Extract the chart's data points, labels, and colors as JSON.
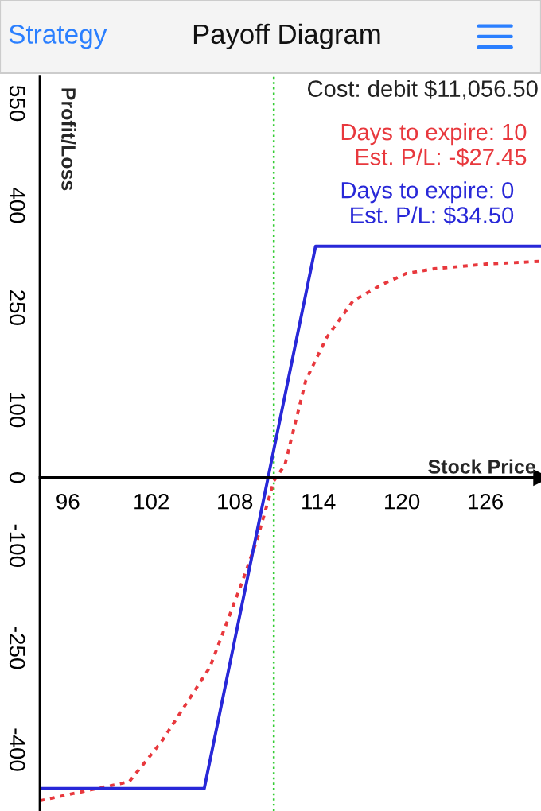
{
  "chart_data": {
    "type": "line",
    "title": "Payoff Diagram",
    "xlabel": "Stock Price",
    "ylabel": "Profit/Loss",
    "annotations": [
      "Cost: debit $11,056.50",
      "Strategy"
    ],
    "series": [
      {
        "name": "Days to expire: 10\nEst. P/L: -$27.45",
        "color": "#e8383d",
        "line_style": "dotted",
        "x": [
          94,
          96,
          100.4,
          102.7,
          106.2,
          108.5,
          109.6,
          110.8,
          111.6,
          113.1,
          114.6,
          116.5,
          118.5,
          120.3,
          122.3,
          126.1,
          130
        ],
        "values": [
          -475,
          -466,
          -447,
          -389,
          -279,
          -155,
          -91,
          -5,
          19,
          143,
          206,
          260,
          283,
          300,
          307,
          314,
          318
        ]
      },
      {
        "name": "Days to expire: 0\nEst. P/L: $34.50",
        "color": "#2828d8",
        "line_style": "solid",
        "x": [
          94,
          105.8,
          113.8,
          130
        ],
        "values": [
          -457,
          -457,
          340,
          340
        ]
      }
    ],
    "ref_lines": [
      {
        "axis": "x",
        "value": 110.8,
        "color": "#33cc33",
        "line_style": "dotted"
      }
    ],
    "xlim": [
      94,
      130
    ],
    "ylim": [
      -490,
      590
    ],
    "xticks": [
      96,
      102,
      108,
      114,
      120,
      126
    ],
    "yticks": [
      -400,
      -250,
      -100,
      0,
      100,
      250,
      400,
      550
    ],
    "grid": false,
    "legend": "top right",
    "marker": "none"
  }
}
